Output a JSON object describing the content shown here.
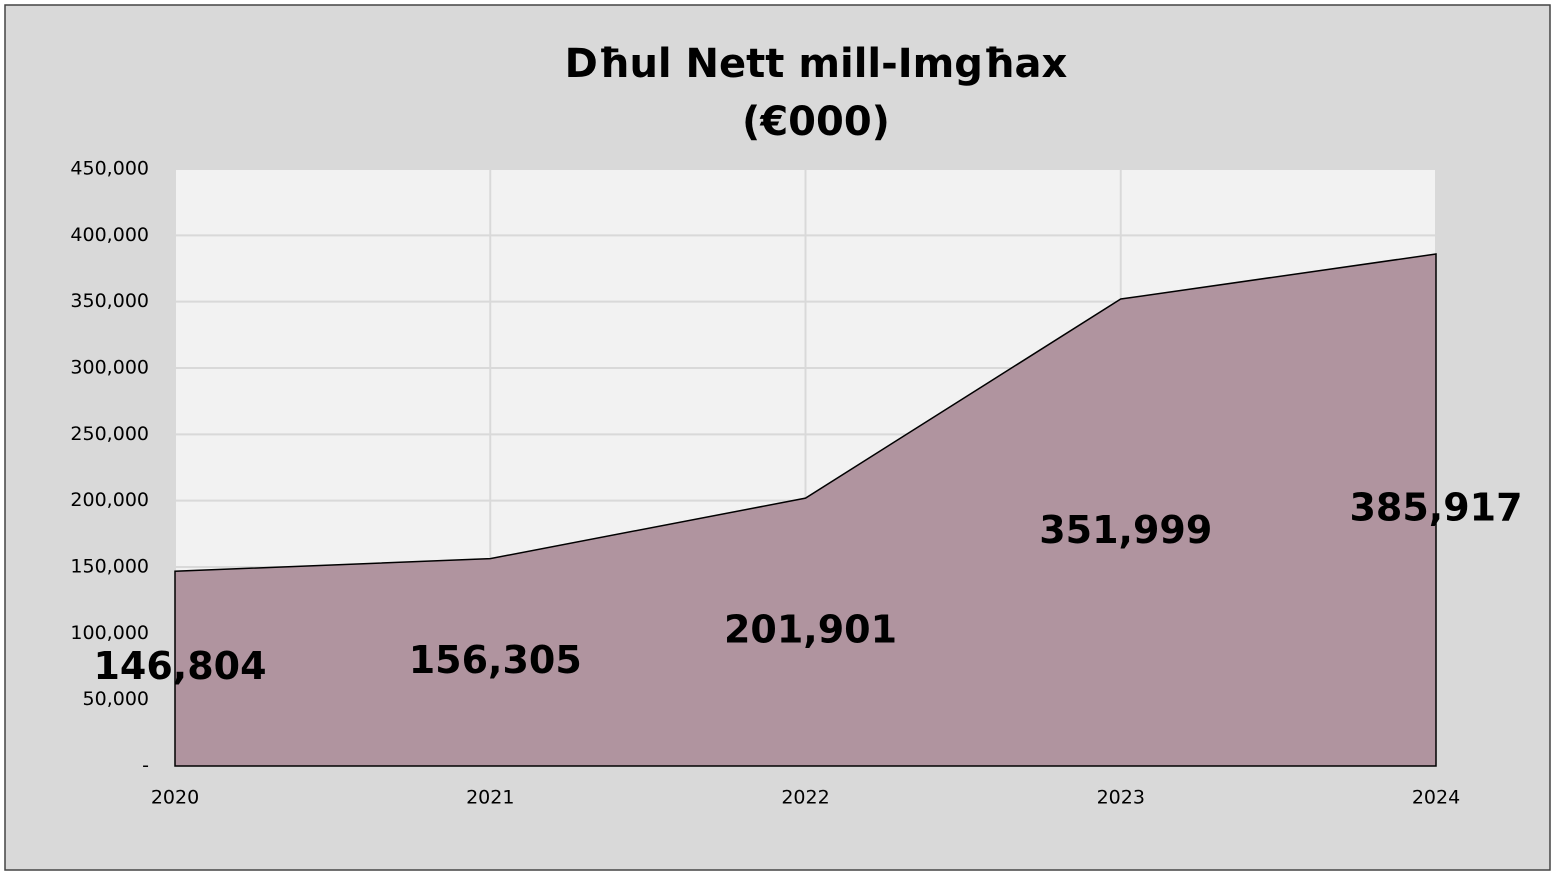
{
  "chart_data": {
    "type": "area",
    "title": [
      "Dħul Nett mill-Imgħax",
      "(€000)"
    ],
    "categories": [
      "2020",
      "2021",
      "2022",
      "2023",
      "2024"
    ],
    "values": [
      146804,
      156305,
      201901,
      351999,
      385917
    ],
    "value_labels": [
      "146,804",
      "156,305",
      "201,901",
      "351,999",
      "385,917"
    ],
    "color": "#b0949f",
    "ylim": [
      0,
      450000
    ],
    "yticks": [
      {
        "value": 0,
        "label": "-"
      },
      {
        "value": 50000,
        "label": "50,000"
      },
      {
        "value": 100000,
        "label": "100,000"
      },
      {
        "value": 150000,
        "label": "150,000"
      },
      {
        "value": 200000,
        "label": "200,000"
      },
      {
        "value": 250000,
        "label": "250,000"
      },
      {
        "value": 300000,
        "label": "300,000"
      },
      {
        "value": 350000,
        "label": "350,000"
      },
      {
        "value": 400000,
        "label": "400,000"
      },
      {
        "value": 450000,
        "label": "450,000"
      }
    ],
    "grid": true
  }
}
